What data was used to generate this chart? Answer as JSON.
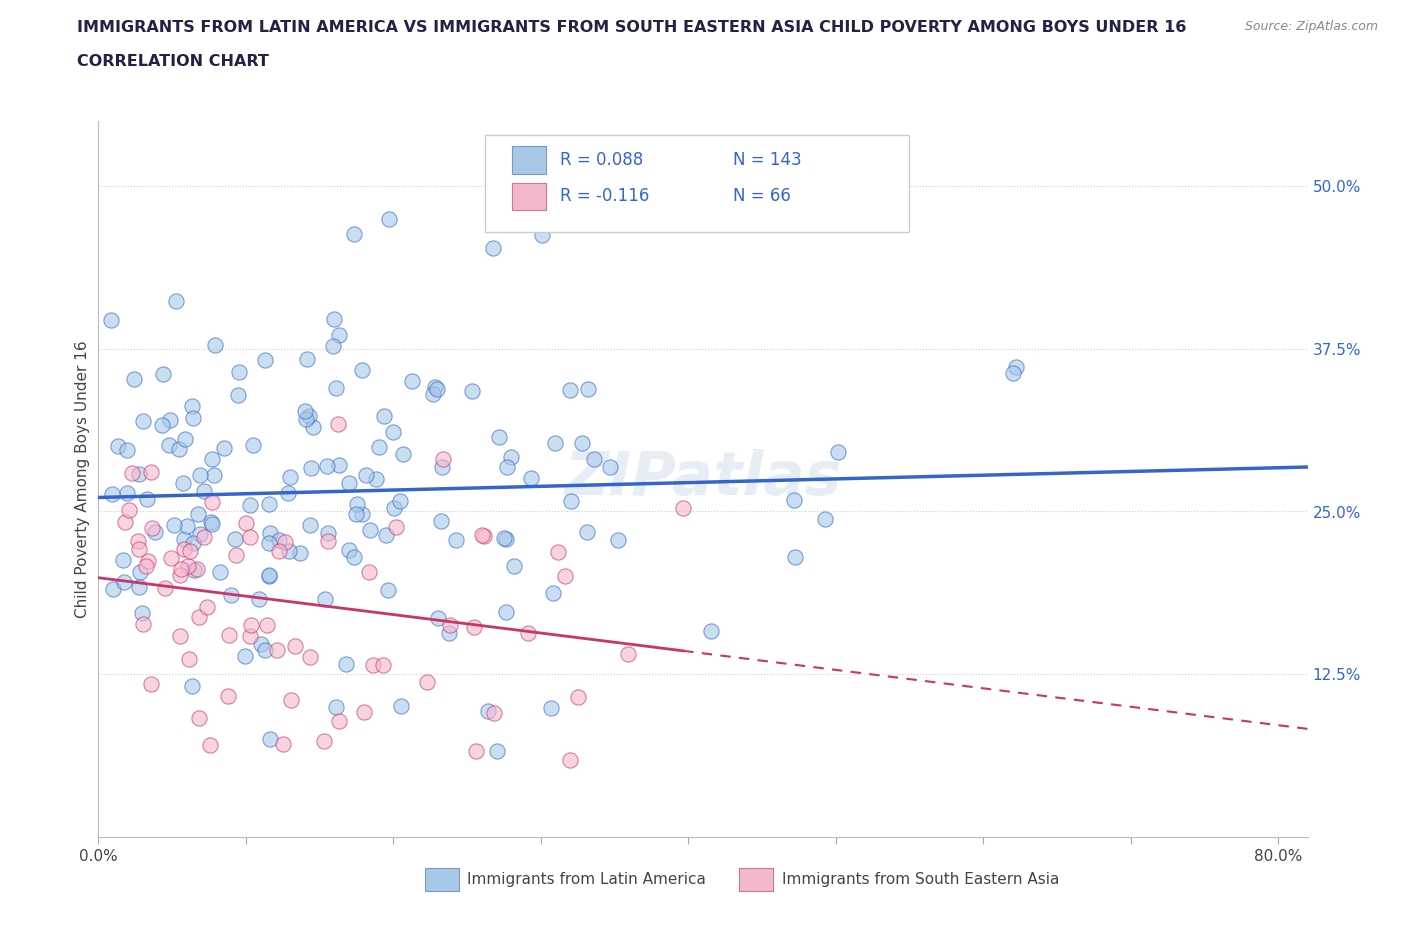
{
  "title_line1": "IMMIGRANTS FROM LATIN AMERICA VS IMMIGRANTS FROM SOUTH EASTERN ASIA CHILD POVERTY AMONG BOYS UNDER 16",
  "title_line2": "CORRELATION CHART",
  "source_text": "Source: ZipAtlas.com",
  "ylabel": "Child Poverty Among Boys Under 16",
  "xlim": [
    0.0,
    0.82
  ],
  "ylim": [
    0.0,
    0.55
  ],
  "x_tick_pos": [
    0.0,
    0.1,
    0.2,
    0.3,
    0.4,
    0.5,
    0.6,
    0.7,
    0.8
  ],
  "x_tick_labels": [
    "0.0%",
    "",
    "",
    "",
    "",
    "",
    "",
    "",
    "80.0%"
  ],
  "y_tick_positions": [
    0.125,
    0.25,
    0.375,
    0.5
  ],
  "y_tick_labels": [
    "12.5%",
    "25.0%",
    "37.5%",
    "50.0%"
  ],
  "grid_color": "#cccccc",
  "background_color": "#ffffff",
  "color_latin": "#a8c8e8",
  "color_sea": "#f4b8cc",
  "line_color_latin": "#3366cc",
  "line_color_sea": "#cc3366",
  "R_latin": 0.088,
  "N_latin": 143,
  "R_sea": -0.116,
  "N_sea": 66,
  "legend_label_latin": "Immigrants from Latin America",
  "legend_label_sea": "Immigrants from South Eastern Asia",
  "watermark": "ZIPatlas",
  "title_color": "#222244",
  "source_color": "#888888",
  "tick_color": "#3366cc",
  "legend_R_color": "#3366cc",
  "legend_N_color": "#cc3366"
}
